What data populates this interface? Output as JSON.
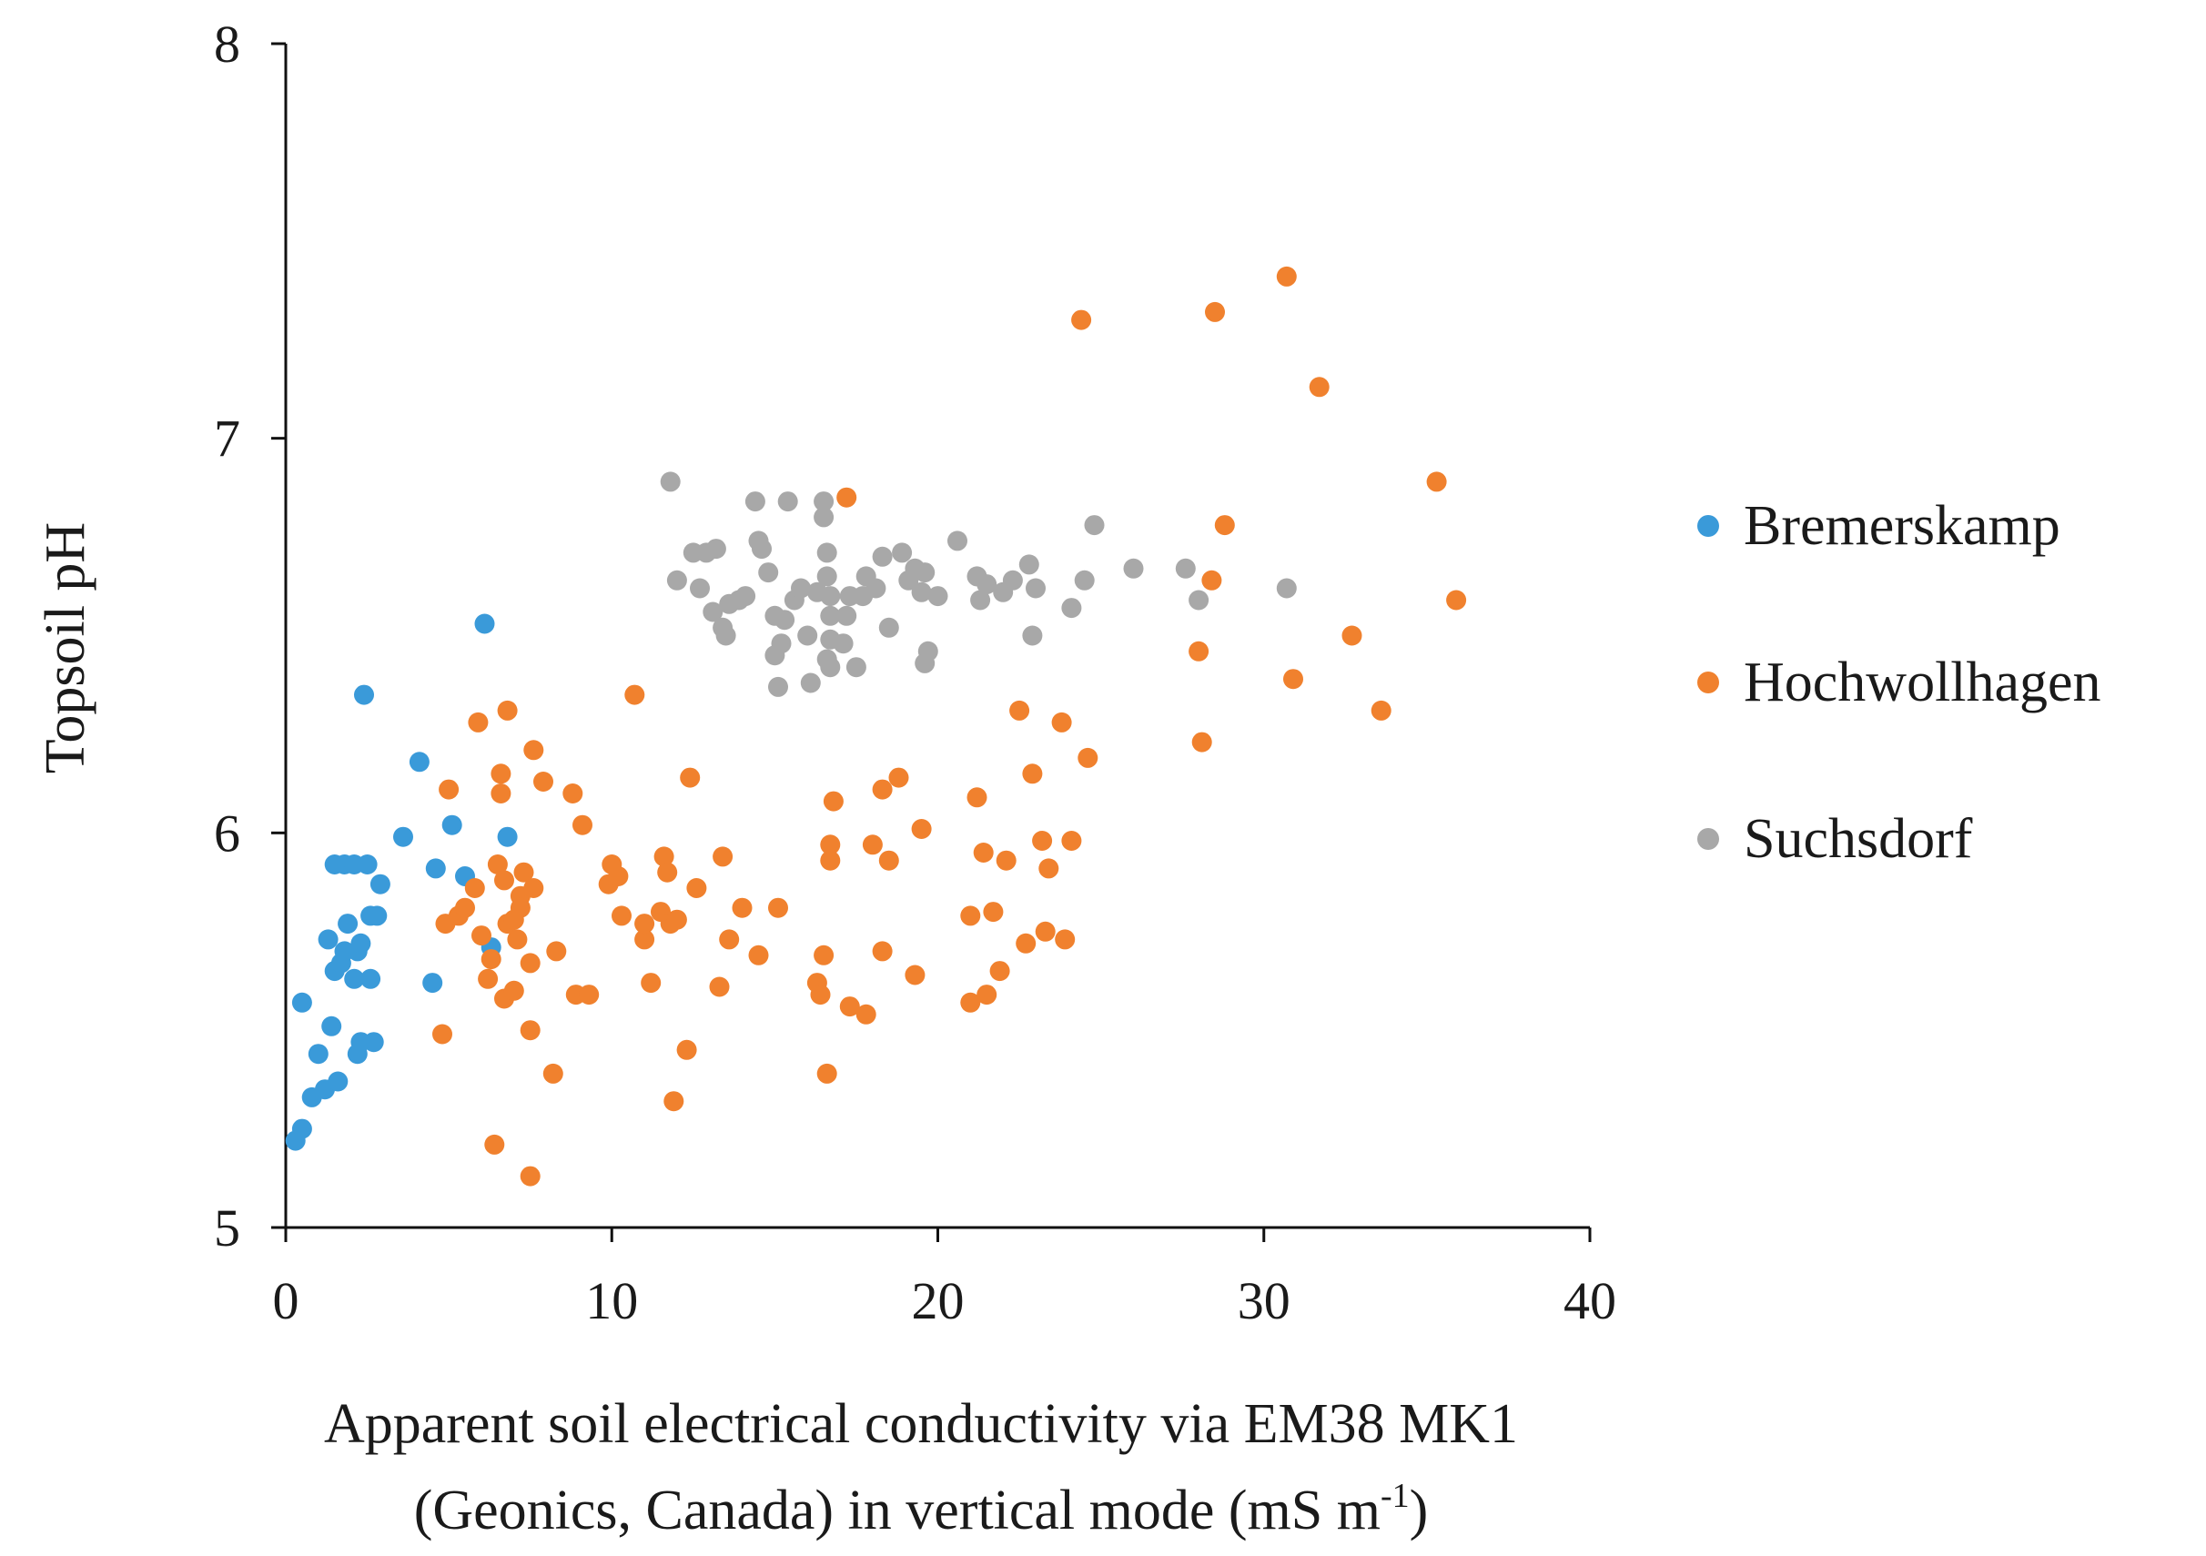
{
  "chart_data": {
    "type": "scatter",
    "title": "",
    "ylabel": "Topsoil pH",
    "xlabel_line1": "Apparent soil electrical conductivity via EM38 MK1",
    "xlabel_line2_prefix": "(Geonics, Canada) in vertical mode (mS m",
    "xlabel_line2_sup": "-1",
    "xlabel_line2_suffix": ")",
    "xlim": [
      0,
      40
    ],
    "ylim": [
      5,
      8
    ],
    "xticks": [
      0,
      10,
      20,
      30,
      40
    ],
    "yticks": [
      5,
      6,
      7,
      8
    ],
    "xtick_labels": [
      "0",
      "10",
      "20",
      "30",
      "40"
    ],
    "ytick_labels": [
      "5",
      "6",
      "7",
      "8"
    ],
    "grid": false,
    "legend_position": "right",
    "series": [
      {
        "name": "Bremerskamp",
        "color": "#3a9ad9",
        "points": [
          [
            0.3,
            5.22
          ],
          [
            0.5,
            5.25
          ],
          [
            0.5,
            5.57
          ],
          [
            0.8,
            5.33
          ],
          [
            1.0,
            5.44
          ],
          [
            1.2,
            5.35
          ],
          [
            1.3,
            5.73
          ],
          [
            1.4,
            5.51
          ],
          [
            1.5,
            5.92
          ],
          [
            1.5,
            5.65
          ],
          [
            1.6,
            5.37
          ],
          [
            1.7,
            5.67
          ],
          [
            1.8,
            5.92
          ],
          [
            1.8,
            5.7
          ],
          [
            1.9,
            5.77
          ],
          [
            2.1,
            5.92
          ],
          [
            2.1,
            5.63
          ],
          [
            2.2,
            5.44
          ],
          [
            2.3,
            5.47
          ],
          [
            2.2,
            5.7
          ],
          [
            2.3,
            5.72
          ],
          [
            2.4,
            6.35
          ],
          [
            2.5,
            5.92
          ],
          [
            2.6,
            5.63
          ],
          [
            2.6,
            5.79
          ],
          [
            2.7,
            5.47
          ],
          [
            2.8,
            5.79
          ],
          [
            2.9,
            5.87
          ],
          [
            3.6,
            5.99
          ],
          [
            4.1,
            6.18
          ],
          [
            4.5,
            5.62
          ],
          [
            4.6,
            5.91
          ],
          [
            5.1,
            6.02
          ],
          [
            5.5,
            5.89
          ],
          [
            6.1,
            6.53
          ],
          [
            6.3,
            5.71
          ],
          [
            6.8,
            5.99
          ]
        ]
      },
      {
        "name": "Hochwollhagen",
        "color": "#f0812e",
        "points": [
          [
            4.8,
            5.49
          ],
          [
            4.9,
            5.77
          ],
          [
            5.0,
            6.11
          ],
          [
            5.3,
            5.79
          ],
          [
            5.5,
            5.81
          ],
          [
            5.8,
            5.86
          ],
          [
            5.9,
            6.28
          ],
          [
            6.0,
            5.74
          ],
          [
            6.2,
            5.63
          ],
          [
            6.3,
            5.68
          ],
          [
            6.4,
            5.21
          ],
          [
            6.5,
            5.92
          ],
          [
            6.6,
            6.15
          ],
          [
            6.6,
            6.1
          ],
          [
            6.7,
            5.58
          ],
          [
            6.7,
            5.88
          ],
          [
            6.8,
            6.31
          ],
          [
            6.8,
            5.77
          ],
          [
            7.0,
            5.6
          ],
          [
            7.0,
            5.78
          ],
          [
            7.1,
            5.73
          ],
          [
            7.2,
            5.84
          ],
          [
            7.2,
            5.81
          ],
          [
            7.3,
            5.9
          ],
          [
            7.5,
            5.67
          ],
          [
            7.5,
            5.13
          ],
          [
            7.5,
            5.5
          ],
          [
            7.6,
            5.86
          ],
          [
            7.6,
            6.21
          ],
          [
            7.9,
            6.13
          ],
          [
            8.2,
            5.39
          ],
          [
            8.3,
            5.7
          ],
          [
            8.8,
            6.1
          ],
          [
            8.9,
            5.59
          ],
          [
            9.3,
            5.59
          ],
          [
            9.1,
            6.02
          ],
          [
            9.9,
            5.87
          ],
          [
            10.0,
            5.92
          ],
          [
            10.2,
            5.89
          ],
          [
            10.3,
            5.79
          ],
          [
            10.7,
            6.35
          ],
          [
            11.0,
            5.73
          ],
          [
            11.0,
            5.77
          ],
          [
            11.2,
            5.62
          ],
          [
            11.5,
            5.8
          ],
          [
            11.6,
            5.94
          ],
          [
            11.7,
            5.9
          ],
          [
            11.8,
            5.77
          ],
          [
            11.9,
            5.32
          ],
          [
            12.0,
            5.78
          ],
          [
            12.3,
            5.45
          ],
          [
            12.4,
            6.14
          ],
          [
            12.6,
            5.86
          ],
          [
            13.3,
            5.61
          ],
          [
            13.4,
            5.94
          ],
          [
            13.6,
            5.73
          ],
          [
            14.0,
            5.81
          ],
          [
            14.5,
            5.69
          ],
          [
            15.1,
            5.81
          ],
          [
            16.3,
            5.62
          ],
          [
            16.4,
            5.59
          ],
          [
            16.5,
            5.69
          ],
          [
            16.6,
            5.39
          ],
          [
            16.7,
            5.93
          ],
          [
            16.7,
            5.97
          ],
          [
            16.8,
            6.08
          ],
          [
            17.3,
            5.56
          ],
          [
            17.2,
            6.85
          ],
          [
            17.8,
            5.54
          ],
          [
            18.0,
            5.97
          ],
          [
            18.3,
            6.11
          ],
          [
            18.3,
            5.7
          ],
          [
            18.5,
            5.93
          ],
          [
            18.8,
            6.14
          ],
          [
            19.3,
            5.64
          ],
          [
            19.5,
            6.01
          ],
          [
            21.0,
            5.57
          ],
          [
            21.0,
            5.79
          ],
          [
            21.2,
            6.09
          ],
          [
            21.4,
            5.95
          ],
          [
            21.5,
            5.59
          ],
          [
            21.7,
            5.8
          ],
          [
            21.9,
            5.65
          ],
          [
            22.1,
            5.93
          ],
          [
            22.5,
            6.31
          ],
          [
            22.7,
            5.72
          ],
          [
            22.9,
            6.15
          ],
          [
            23.2,
            5.98
          ],
          [
            23.3,
            5.75
          ],
          [
            23.4,
            5.91
          ],
          [
            23.8,
            6.28
          ],
          [
            23.9,
            5.73
          ],
          [
            24.1,
            5.98
          ],
          [
            24.4,
            7.3
          ],
          [
            24.6,
            6.19
          ],
          [
            28.1,
            6.23
          ],
          [
            28.0,
            6.46
          ],
          [
            28.4,
            6.64
          ],
          [
            28.5,
            7.32
          ],
          [
            28.8,
            6.78
          ],
          [
            30.7,
            7.41
          ],
          [
            30.9,
            6.39
          ],
          [
            31.7,
            7.13
          ],
          [
            32.7,
            6.5
          ],
          [
            33.6,
            6.31
          ],
          [
            35.3,
            6.89
          ],
          [
            35.9,
            6.59
          ]
        ]
      },
      {
        "name": "Suchsdorf",
        "color": "#a8a8a8",
        "points": [
          [
            11.8,
            6.89
          ],
          [
            12.0,
            6.64
          ],
          [
            12.5,
            6.71
          ],
          [
            12.7,
            6.62
          ],
          [
            12.9,
            6.71
          ],
          [
            13.1,
            6.56
          ],
          [
            13.2,
            6.72
          ],
          [
            13.4,
            6.52
          ],
          [
            13.5,
            6.5
          ],
          [
            13.6,
            6.58
          ],
          [
            13.9,
            6.59
          ],
          [
            14.1,
            6.6
          ],
          [
            14.4,
            6.84
          ],
          [
            14.5,
            6.74
          ],
          [
            14.6,
            6.72
          ],
          [
            14.8,
            6.66
          ],
          [
            15.0,
            6.55
          ],
          [
            15.0,
            6.45
          ],
          [
            15.1,
            6.37
          ],
          [
            15.2,
            6.48
          ],
          [
            15.3,
            6.54
          ],
          [
            15.4,
            6.84
          ],
          [
            15.6,
            6.59
          ],
          [
            15.8,
            6.62
          ],
          [
            16.0,
            6.5
          ],
          [
            16.1,
            6.38
          ],
          [
            16.3,
            6.61
          ],
          [
            16.5,
            6.84
          ],
          [
            16.5,
            6.8
          ],
          [
            16.6,
            6.71
          ],
          [
            16.6,
            6.65
          ],
          [
            16.7,
            6.6
          ],
          [
            16.7,
            6.55
          ],
          [
            16.7,
            6.49
          ],
          [
            16.6,
            6.44
          ],
          [
            16.7,
            6.42
          ],
          [
            17.1,
            6.48
          ],
          [
            17.2,
            6.55
          ],
          [
            17.3,
            6.6
          ],
          [
            17.5,
            6.42
          ],
          [
            17.7,
            6.6
          ],
          [
            17.8,
            6.65
          ],
          [
            18.1,
            6.62
          ],
          [
            18.3,
            6.7
          ],
          [
            18.5,
            6.52
          ],
          [
            18.9,
            6.71
          ],
          [
            19.1,
            6.64
          ],
          [
            19.3,
            6.67
          ],
          [
            19.5,
            6.61
          ],
          [
            19.6,
            6.66
          ],
          [
            19.6,
            6.43
          ],
          [
            19.7,
            6.46
          ],
          [
            20.0,
            6.6
          ],
          [
            20.6,
            6.74
          ],
          [
            21.2,
            6.65
          ],
          [
            21.3,
            6.59
          ],
          [
            21.5,
            6.63
          ],
          [
            22.0,
            6.61
          ],
          [
            22.3,
            6.64
          ],
          [
            22.8,
            6.68
          ],
          [
            22.9,
            6.5
          ],
          [
            23.0,
            6.62
          ],
          [
            24.1,
            6.57
          ],
          [
            24.5,
            6.64
          ],
          [
            24.8,
            6.78
          ],
          [
            26.0,
            6.67
          ],
          [
            27.6,
            6.67
          ],
          [
            28.0,
            6.59
          ],
          [
            30.7,
            6.62
          ]
        ]
      }
    ]
  }
}
